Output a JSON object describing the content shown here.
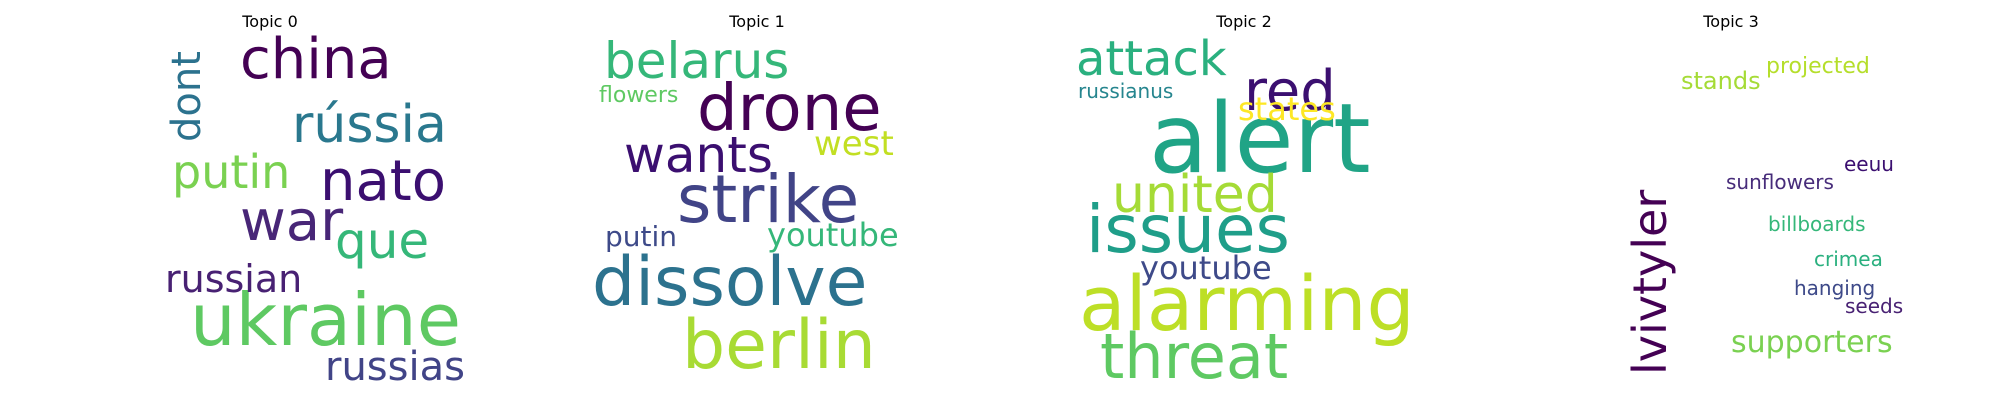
{
  "chart_data": [
    {
      "type": "wordcloud",
      "title": "Topic 0",
      "words": [
        {
          "text": "ukraine",
          "color": "#5ec962"
        },
        {
          "text": "china",
          "color": "#440154"
        },
        {
          "text": "rússia",
          "color": "#2a788e"
        },
        {
          "text": "nato",
          "color": "#3b0f70"
        },
        {
          "text": "putin",
          "color": "#7ad151"
        },
        {
          "text": "war",
          "color": "#482677"
        },
        {
          "text": "que",
          "color": "#35b779"
        },
        {
          "text": "russian",
          "color": "#482173"
        },
        {
          "text": "russias",
          "color": "#414487"
        },
        {
          "text": "dont",
          "color": "#2c728e"
        }
      ]
    },
    {
      "type": "wordcloud",
      "title": "Topic 1",
      "words": [
        {
          "text": "dissolve",
          "color": "#2c728e"
        },
        {
          "text": "berlin",
          "color": "#a8db34"
        },
        {
          "text": "strike",
          "color": "#414487"
        },
        {
          "text": "drone",
          "color": "#440154"
        },
        {
          "text": "belarus",
          "color": "#35b779"
        },
        {
          "text": "wants",
          "color": "#3b0f70"
        },
        {
          "text": "west",
          "color": "#c2df23"
        },
        {
          "text": "youtube",
          "color": "#35b779"
        },
        {
          "text": "putin",
          "color": "#3e4a89"
        },
        {
          "text": "flowers",
          "color": "#5ec962"
        }
      ]
    },
    {
      "type": "wordcloud",
      "title": "Topic 2",
      "words": [
        {
          "text": "alert",
          "color": "#20a486"
        },
        {
          "text": "alarming",
          "color": "#bddf26"
        },
        {
          "text": "issues",
          "color": "#1f9e89"
        },
        {
          "text": "threat",
          "color": "#5ec962"
        },
        {
          "text": "united",
          "color": "#a5db36"
        },
        {
          "text": "red",
          "color": "#3b0f70"
        },
        {
          "text": "attack",
          "color": "#2ab07f"
        },
        {
          "text": "youtube",
          "color": "#3e4a89"
        },
        {
          "text": "states",
          "color": "#fde725"
        },
        {
          "text": "russianus",
          "color": "#25858e"
        }
      ]
    },
    {
      "type": "wordcloud",
      "title": "Topic 3",
      "words": [
        {
          "text": "lvivtyler",
          "color": "#440154"
        },
        {
          "text": "supporters",
          "color": "#7ad151"
        },
        {
          "text": "stands",
          "color": "#a5db36"
        },
        {
          "text": "projected",
          "color": "#b5de2b"
        },
        {
          "text": "sunflowers",
          "color": "#472c7a"
        },
        {
          "text": "eeuu",
          "color": "#3b0f70"
        },
        {
          "text": "billboards",
          "color": "#35b779"
        },
        {
          "text": "crimea",
          "color": "#2ab07f"
        },
        {
          "text": "hanging",
          "color": "#3e4a89"
        },
        {
          "text": "seeds",
          "color": "#482173"
        }
      ]
    }
  ]
}
